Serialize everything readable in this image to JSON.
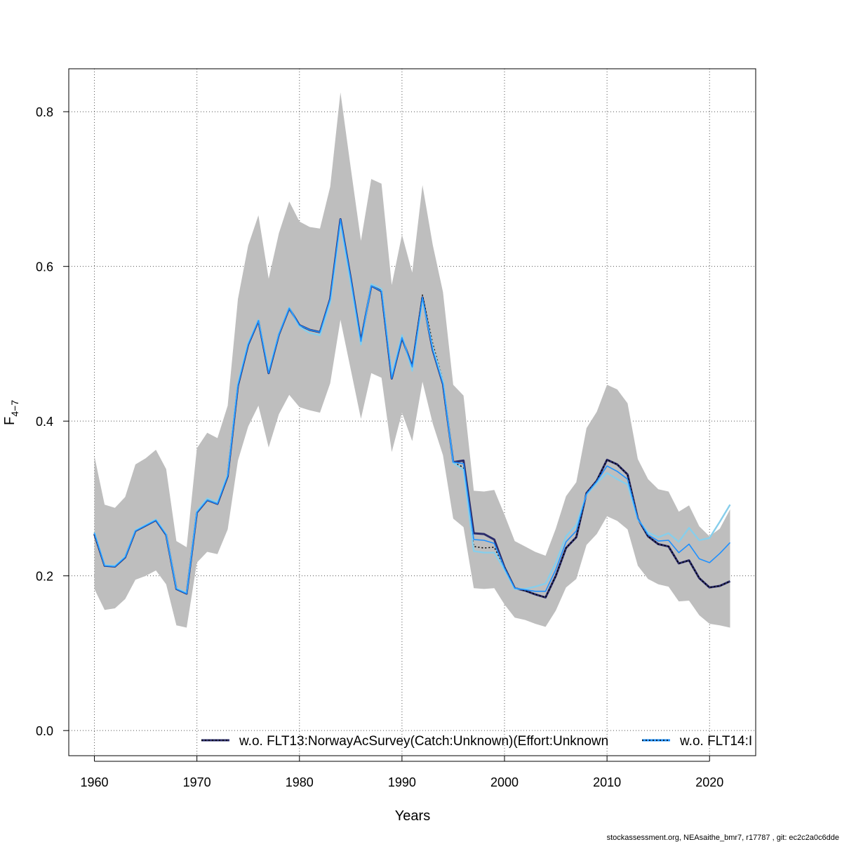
{
  "chart_data": {
    "type": "line",
    "xlabel": "Years",
    "ylabel_main": "F",
    "ylabel_sub": "4−7",
    "xlim": [
      1957.5,
      2024.5
    ],
    "ylim": [
      -0.0325,
      0.8555
    ],
    "xticks": [
      1960,
      1970,
      1980,
      1990,
      2000,
      2010,
      2020
    ],
    "yticks": [
      0.0,
      0.2,
      0.4,
      0.6,
      0.8
    ],
    "ytick_labels": [
      "0.0",
      "0.2",
      "0.4",
      "0.6",
      "0.8"
    ],
    "grid": true,
    "legend_placement": "bottom",
    "footer": "stockassessment.org, NEAsaithe_bmr7, r17787 , git: ec2c2a0c6dde",
    "band_color": "#bebebe",
    "x": [
      1960,
      1961,
      1962,
      1963,
      1964,
      1965,
      1966,
      1967,
      1968,
      1969,
      1970,
      1971,
      1972,
      1973,
      1974,
      1975,
      1976,
      1977,
      1978,
      1979,
      1980,
      1981,
      1982,
      1983,
      1984,
      1985,
      1986,
      1987,
      1988,
      1989,
      1990,
      1991,
      1992,
      1993,
      1994,
      1995,
      1996,
      1997,
      1998,
      1999,
      2000,
      2001,
      2002,
      2003,
      2004,
      2005,
      2006,
      2007,
      2008,
      2009,
      2010,
      2011,
      2012,
      2013,
      2014,
      2015,
      2016,
      2017,
      2018,
      2019,
      2020,
      2021,
      2022
    ],
    "band_upper": [
      0.355,
      0.292,
      0.288,
      0.302,
      0.344,
      0.352,
      0.363,
      0.338,
      0.245,
      0.237,
      0.365,
      0.385,
      0.378,
      0.42,
      0.558,
      0.627,
      0.666,
      0.584,
      0.643,
      0.684,
      0.658,
      0.651,
      0.649,
      0.703,
      0.825,
      0.728,
      0.633,
      0.713,
      0.707,
      0.576,
      0.641,
      0.592,
      0.705,
      0.628,
      0.567,
      0.447,
      0.433,
      0.31,
      0.309,
      0.311,
      0.279,
      0.245,
      0.238,
      0.231,
      0.226,
      0.261,
      0.303,
      0.321,
      0.391,
      0.412,
      0.447,
      0.441,
      0.423,
      0.351,
      0.325,
      0.312,
      0.309,
      0.283,
      0.291,
      0.264,
      0.251,
      0.261,
      0.286
    ],
    "band_lower": [
      0.183,
      0.156,
      0.158,
      0.17,
      0.195,
      0.2,
      0.207,
      0.189,
      0.136,
      0.133,
      0.217,
      0.231,
      0.228,
      0.26,
      0.349,
      0.393,
      0.42,
      0.366,
      0.409,
      0.434,
      0.418,
      0.414,
      0.411,
      0.449,
      0.531,
      0.467,
      0.403,
      0.462,
      0.456,
      0.36,
      0.411,
      0.374,
      0.451,
      0.397,
      0.356,
      0.274,
      0.263,
      0.184,
      0.183,
      0.184,
      0.163,
      0.146,
      0.143,
      0.138,
      0.134,
      0.155,
      0.185,
      0.196,
      0.24,
      0.254,
      0.277,
      0.271,
      0.26,
      0.213,
      0.196,
      0.189,
      0.186,
      0.167,
      0.168,
      0.149,
      0.138,
      0.136,
      0.133
    ],
    "series": [
      {
        "name": "w.o. FLT13:NorwayAcSurvey(Catch:Unknown)(Effort:Unknown",
        "color": "#2b2c6b",
        "linestyle": "solid",
        "values": [
          0.254,
          0.213,
          0.212,
          0.224,
          0.258,
          0.265,
          0.272,
          0.253,
          0.183,
          0.177,
          0.282,
          0.298,
          0.293,
          0.329,
          0.446,
          0.499,
          0.53,
          0.462,
          0.512,
          0.546,
          0.524,
          0.518,
          0.515,
          0.558,
          0.661,
          0.585,
          0.503,
          0.575,
          0.568,
          0.455,
          0.508,
          0.47,
          0.56,
          0.492,
          0.448,
          0.347,
          0.349,
          0.255,
          0.254,
          0.247,
          0.211,
          0.184,
          0.181,
          0.176,
          0.172,
          0.2,
          0.236,
          0.25,
          0.307,
          0.323,
          0.35,
          0.344,
          0.331,
          0.274,
          0.251,
          0.241,
          0.238,
          0.216,
          0.22,
          0.197,
          0.185,
          0.187,
          0.193
        ]
      },
      {
        "name": "w.o. FLT14:I",
        "color": "#000000",
        "linestyle": "dotted",
        "values": [
          0.253,
          0.213,
          0.212,
          0.224,
          0.258,
          0.265,
          0.272,
          0.253,
          0.183,
          0.177,
          0.282,
          0.298,
          0.293,
          0.329,
          0.446,
          0.499,
          0.53,
          0.462,
          0.512,
          0.546,
          0.524,
          0.518,
          0.515,
          0.558,
          0.66,
          0.584,
          0.503,
          0.575,
          0.568,
          0.455,
          0.508,
          0.47,
          0.563,
          0.5,
          0.453,
          0.347,
          0.34,
          0.238,
          0.236,
          0.237,
          0.211,
          0.184,
          0.181,
          0.176,
          0.172,
          0.2,
          0.236,
          0.25,
          0.307,
          0.323,
          0.35,
          0.344,
          0.331,
          0.274,
          0.251,
          0.241,
          0.238,
          0.216,
          0.22,
          0.197,
          0.185,
          0.187,
          0.193
        ]
      },
      {
        "name": "",
        "color": "#87ceeb",
        "linestyle": "solid",
        "values": [
          0.256,
          0.214,
          0.213,
          0.225,
          0.259,
          0.266,
          0.273,
          0.254,
          0.184,
          0.178,
          0.284,
          0.3,
          0.295,
          0.331,
          0.449,
          0.501,
          0.531,
          0.465,
          0.513,
          0.547,
          0.522,
          0.514,
          0.511,
          0.553,
          0.656,
          0.578,
          0.499,
          0.577,
          0.571,
          0.459,
          0.511,
          0.465,
          0.557,
          0.495,
          0.452,
          0.346,
          0.337,
          0.232,
          0.23,
          0.23,
          0.208,
          0.183,
          0.183,
          0.186,
          0.19,
          0.217,
          0.251,
          0.266,
          0.305,
          0.32,
          0.333,
          0.325,
          0.318,
          0.273,
          0.256,
          0.25,
          0.255,
          0.244,
          0.262,
          0.246,
          0.249,
          0.27,
          0.292
        ]
      },
      {
        "name": "",
        "color": "#1e90ff",
        "linestyle": "solid",
        "values": [
          0.255,
          0.213,
          0.212,
          0.224,
          0.258,
          0.265,
          0.272,
          0.253,
          0.183,
          0.177,
          0.282,
          0.298,
          0.293,
          0.329,
          0.446,
          0.499,
          0.53,
          0.462,
          0.512,
          0.546,
          0.524,
          0.518,
          0.515,
          0.558,
          0.661,
          0.585,
          0.503,
          0.575,
          0.568,
          0.455,
          0.508,
          0.47,
          0.56,
          0.492,
          0.448,
          0.347,
          0.345,
          0.247,
          0.246,
          0.242,
          0.21,
          0.184,
          0.182,
          0.18,
          0.18,
          0.208,
          0.244,
          0.258,
          0.306,
          0.322,
          0.342,
          0.335,
          0.325,
          0.274,
          0.253,
          0.245,
          0.246,
          0.23,
          0.241,
          0.222,
          0.217,
          0.229,
          0.243
        ]
      }
    ]
  }
}
